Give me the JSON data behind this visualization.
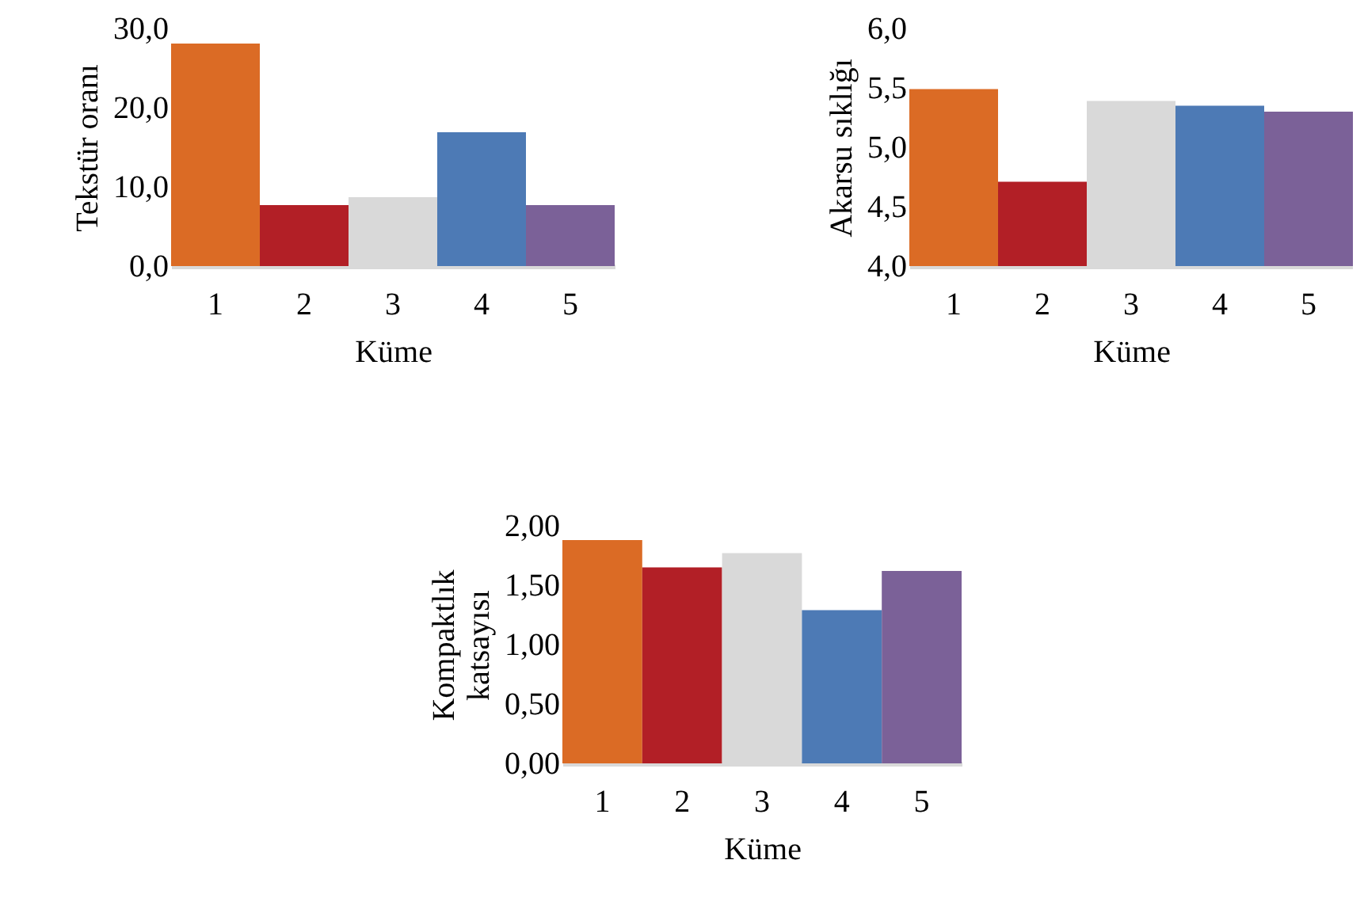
{
  "chart_data": [
    {
      "type": "bar",
      "xlabel": "Küme",
      "ylabel": "Tekstür oranı",
      "categories": [
        "1",
        "2",
        "3",
        "4",
        "5"
      ],
      "values": [
        28.1,
        7.7,
        8.7,
        16.9,
        7.7
      ],
      "colors": [
        "#db6b25",
        "#b21f26",
        "#d9d9d9",
        "#4d7ab5",
        "#7b6198"
      ],
      "ylim": [
        0,
        30
      ],
      "yticks": [
        {
          "value": 0,
          "label": "0,0"
        },
        {
          "value": 10,
          "label": "10,0"
        },
        {
          "value": 20,
          "label": "20,0"
        },
        {
          "value": 30,
          "label": "30,0"
        }
      ],
      "grid": false
    },
    {
      "type": "bar",
      "xlabel": "Küme",
      "ylabel": "Akarsu sıklığı",
      "categories": [
        "1",
        "2",
        "3",
        "4",
        "5"
      ],
      "values": [
        5.49,
        4.71,
        5.39,
        5.35,
        5.3
      ],
      "colors": [
        "#db6b25",
        "#b21f26",
        "#d9d9d9",
        "#4d7ab5",
        "#7b6198"
      ],
      "ylim": [
        4,
        6
      ],
      "yticks": [
        {
          "value": 4,
          "label": "4,0"
        },
        {
          "value": 4.5,
          "label": "4,5"
        },
        {
          "value": 5,
          "label": "5,0"
        },
        {
          "value": 5.5,
          "label": "5,5"
        },
        {
          "value": 6,
          "label": "6,0"
        }
      ],
      "grid": false
    },
    {
      "type": "bar",
      "xlabel": "Küme",
      "ylabel": [
        "Kompaktlık",
        "katsayısı"
      ],
      "categories": [
        "1",
        "2",
        "3",
        "4",
        "5"
      ],
      "values": [
        1.88,
        1.65,
        1.77,
        1.29,
        1.62
      ],
      "colors": [
        "#db6b25",
        "#b21f26",
        "#d9d9d9",
        "#4d7ab5",
        "#7b6198"
      ],
      "ylim": [
        0,
        2
      ],
      "yticks": [
        {
          "value": 0,
          "label": "0,00"
        },
        {
          "value": 0.5,
          "label": "0,50"
        },
        {
          "value": 1,
          "label": "1,00"
        },
        {
          "value": 1.5,
          "label": "1,50"
        },
        {
          "value": 2,
          "label": "2,00"
        }
      ],
      "grid": false
    }
  ]
}
